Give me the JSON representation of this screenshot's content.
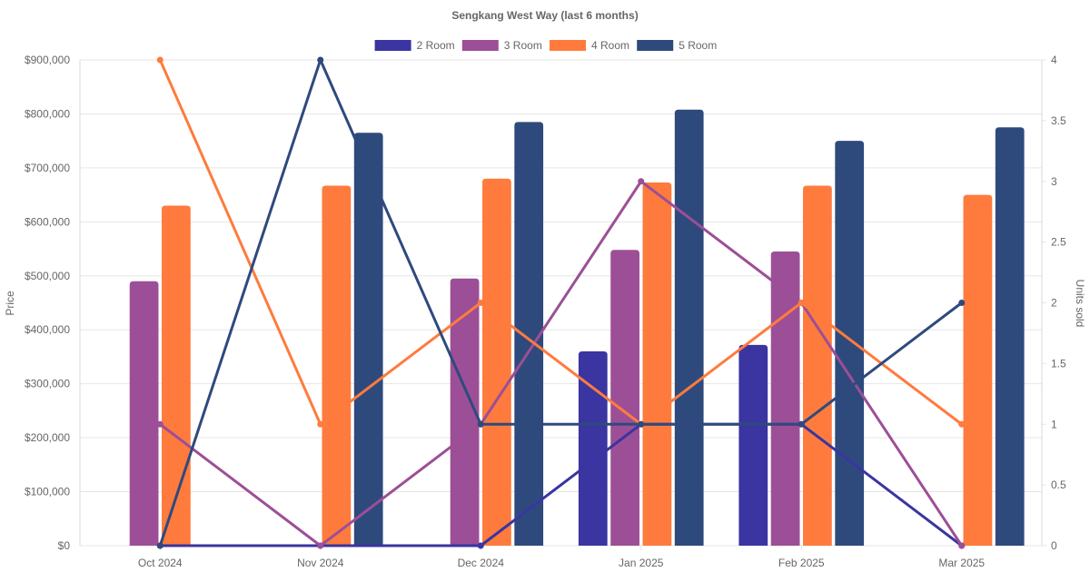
{
  "chart_data": {
    "type": "bar",
    "title": "Sengkang West Way (last 6 months)",
    "categories": [
      "Oct 2024",
      "Nov 2024",
      "Dec 2024",
      "Jan 2025",
      "Feb 2025",
      "Mar 2025"
    ],
    "ylabel": "Price",
    "y2label": "Units sold",
    "ylim": [
      0,
      900000
    ],
    "y2lim": [
      0,
      4
    ],
    "yticks": [
      "$0",
      "$100,000",
      "$200,000",
      "$300,000",
      "$400,000",
      "$500,000",
      "$600,000",
      "$700,000",
      "$800,000",
      "$900,000"
    ],
    "y2ticks": [
      "0",
      "0.5",
      "1",
      "1.5",
      "2",
      "2.5",
      "3",
      "3.5",
      "4"
    ],
    "legend_position": "top",
    "grid": true,
    "series": [
      {
        "name": "2 Room",
        "color": "#3a35a0",
        "price": [
          null,
          null,
          null,
          360000,
          372000,
          null
        ],
        "units": [
          0,
          0,
          0,
          1,
          1,
          0
        ]
      },
      {
        "name": "3 Room",
        "color": "#9c4f96",
        "price": [
          490000,
          null,
          495000,
          548000,
          545000,
          null
        ],
        "units": [
          1,
          0,
          1,
          3,
          2,
          0
        ]
      },
      {
        "name": "4 Room",
        "color": "#ff7b3d",
        "price": [
          630000,
          667000,
          680000,
          673000,
          667000,
          650000
        ],
        "units": [
          4,
          1,
          2,
          1,
          2,
          1
        ]
      },
      {
        "name": "5 Room",
        "color": "#2e4a7d",
        "price": [
          null,
          765000,
          785000,
          808000,
          750000,
          775000
        ],
        "units": [
          0,
          4,
          1,
          1,
          1,
          2
        ]
      }
    ]
  }
}
